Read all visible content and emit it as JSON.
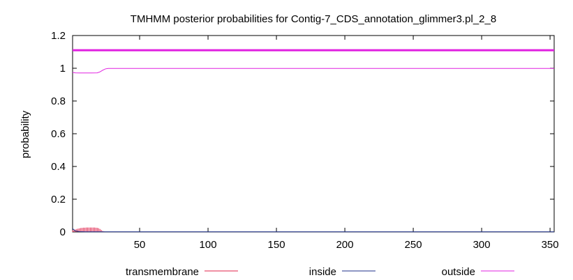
{
  "chart_data": {
    "type": "line",
    "title": "TMHMM posterior probabilities for Contig-7_CDS_annotation_glimmer3.pl_2_8",
    "xlabel": "",
    "ylabel": "probability",
    "xlim": [
      1,
      353
    ],
    "ylim": [
      0,
      1.2
    ],
    "x_ticks": [
      50,
      100,
      150,
      200,
      250,
      300,
      350
    ],
    "y_ticks": [
      0,
      0.2,
      0.4,
      0.6,
      0.8,
      1,
      1.2
    ],
    "x_tick_labels": [
      "50",
      "100",
      "150",
      "200",
      "250",
      "300",
      "350"
    ],
    "y_tick_labels": [
      "0",
      "0.2",
      "0.4",
      "0.6",
      "0.8",
      "1",
      "1.2"
    ],
    "grid": false,
    "legend_position": "bottom",
    "colors": {
      "transmembrane": "#e0204a",
      "inside": "#1c2f8a",
      "outside": "#e020e0",
      "topology_bar": "#e020e0"
    },
    "topology_bar_level": 1.11,
    "series": [
      {
        "name": "transmembrane",
        "style": "impulses",
        "points": [
          [
            1,
            0.01
          ],
          [
            2,
            0.012
          ],
          [
            3,
            0.015
          ],
          [
            4,
            0.018
          ],
          [
            5,
            0.02
          ],
          [
            6,
            0.022
          ],
          [
            7,
            0.024
          ],
          [
            8,
            0.025
          ],
          [
            9,
            0.026
          ],
          [
            10,
            0.026
          ],
          [
            11,
            0.027
          ],
          [
            12,
            0.027
          ],
          [
            13,
            0.027
          ],
          [
            14,
            0.027
          ],
          [
            15,
            0.027
          ],
          [
            16,
            0.027
          ],
          [
            17,
            0.027
          ],
          [
            18,
            0.026
          ],
          [
            19,
            0.025
          ],
          [
            20,
            0.023
          ],
          [
            21,
            0.018
          ],
          [
            22,
            0.012
          ],
          [
            23,
            0.006
          ],
          [
            24,
            0.003
          ],
          [
            25,
            0.001
          ],
          [
            26,
            0.0
          ]
        ]
      },
      {
        "name": "inside",
        "style": "line",
        "points": [
          [
            1,
            0.02
          ],
          [
            3,
            0.006
          ],
          [
            6,
            0.002
          ],
          [
            10,
            0.001
          ],
          [
            20,
            0.001
          ],
          [
            30,
            0.001
          ],
          [
            353,
            0.001
          ]
        ]
      },
      {
        "name": "outside",
        "style": "line",
        "points": [
          [
            1,
            0.975
          ],
          [
            3,
            0.972
          ],
          [
            6,
            0.971
          ],
          [
            10,
            0.971
          ],
          [
            15,
            0.971
          ],
          [
            19,
            0.972
          ],
          [
            21,
            0.978
          ],
          [
            23,
            0.988
          ],
          [
            25,
            0.996
          ],
          [
            27,
            0.999
          ],
          [
            40,
            0.999
          ],
          [
            100,
            0.999
          ],
          [
            200,
            0.999
          ],
          [
            300,
            0.999
          ],
          [
            353,
            0.999
          ]
        ]
      }
    ]
  }
}
